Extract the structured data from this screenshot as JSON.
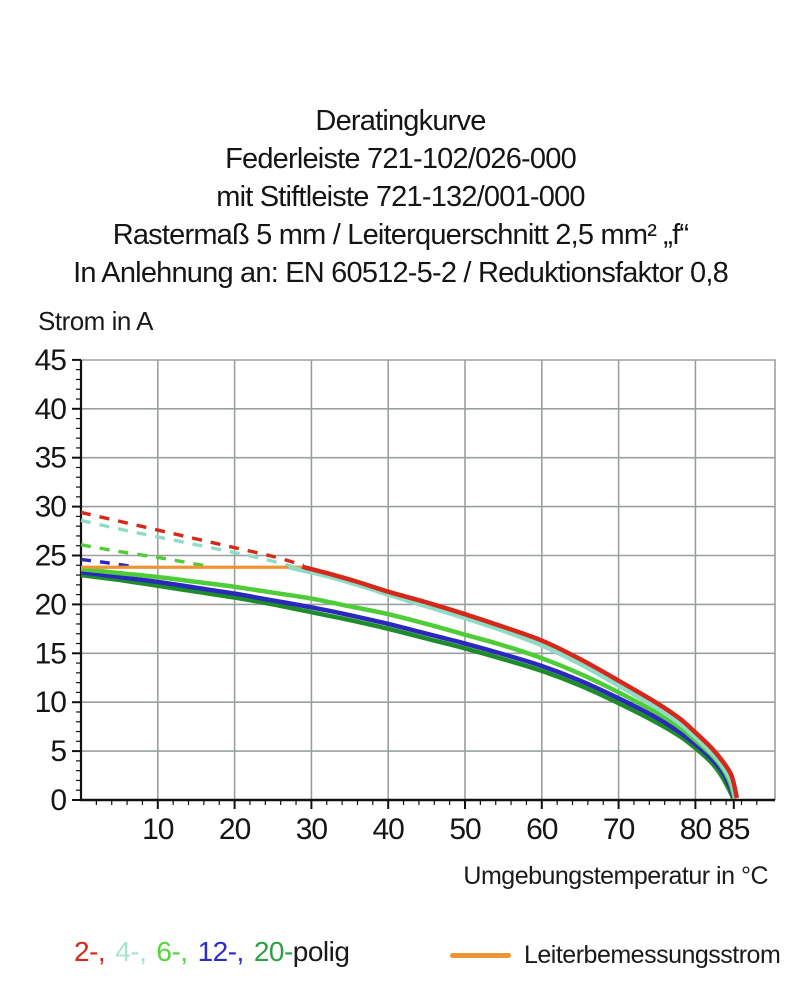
{
  "title": {
    "lines": [
      "Deratingkurve",
      "Federleiste 721-102/026-000",
      "mit Stiftleiste 721-132/001-000",
      "Rastermaß 5 mm / Leiterquerschnitt 2,5 mm² „f“",
      "In Anlehnung an: EN 60512-5-2 / Reduktionsfaktor 0,8"
    ]
  },
  "chart_data": {
    "type": "line",
    "title": "Deratingkurve Federleiste 721-102/026-000 mit Stiftleiste 721-132/001-000",
    "xlabel": "Umgebungstemperatur in °C",
    "ylabel": "Strom in A",
    "xlim": [
      0,
      90.3
    ],
    "ylim": [
      0,
      45
    ],
    "grid": true,
    "x_major_ticks": [
      10,
      20,
      30,
      40,
      50,
      60,
      70,
      80,
      85
    ],
    "x_grid_ticks": [
      10,
      20,
      30,
      40,
      50,
      60,
      70,
      80
    ],
    "y_major_ticks": [
      0,
      5,
      10,
      15,
      20,
      25,
      30,
      35,
      40,
      45
    ],
    "y_grid_ticks": [
      5,
      10,
      15,
      20,
      25,
      30,
      35,
      40
    ],
    "x_minor_step": 2,
    "y_minor_step": 1,
    "axis_color": "#111111",
    "grid_color": "#9aa0a0",
    "series": [
      {
        "name": "2-polig oberhalb Leiterbemessungsstrom",
        "pole_count": 2,
        "style": "dashed",
        "color": "#d5281b",
        "width": 3.4,
        "points": [
          [
            0,
            29.4
          ],
          [
            5,
            28.5
          ],
          [
            10,
            27.6
          ],
          [
            15,
            26.7
          ],
          [
            20,
            25.8
          ],
          [
            25,
            24.9
          ],
          [
            29,
            24.0
          ]
        ]
      },
      {
        "name": "4-polig oberhalb Leiterbemessungsstrom",
        "pole_count": 4,
        "style": "dashed",
        "color": "#8edcc6",
        "width": 3.4,
        "points": [
          [
            0,
            28.6
          ],
          [
            5,
            27.7
          ],
          [
            10,
            26.9
          ],
          [
            15,
            26.1
          ],
          [
            20,
            25.3
          ],
          [
            24,
            24.6
          ],
          [
            27.5,
            23.9
          ]
        ]
      },
      {
        "name": "6-polig oberhalb Leiterbemessungsstrom",
        "pole_count": 6,
        "style": "dashed",
        "color": "#4ecd38",
        "width": 3.4,
        "points": [
          [
            0,
            26.1
          ],
          [
            5,
            25.4
          ],
          [
            10,
            24.8
          ],
          [
            13,
            24.4
          ],
          [
            16.5,
            23.9
          ]
        ]
      },
      {
        "name": "12-polig oberhalb Leiterbemessungsstrom",
        "pole_count": 12,
        "style": "dashed",
        "color": "#2a28bd",
        "width": 3.4,
        "points": [
          [
            0,
            24.6
          ],
          [
            3,
            24.3
          ],
          [
            6.5,
            23.9
          ]
        ]
      },
      {
        "name": "20-polig",
        "pole_count": 20,
        "style": "solid",
        "color": "#1f8c2a",
        "width": 4.5,
        "points": [
          [
            0,
            23.0
          ],
          [
            5,
            22.5
          ],
          [
            10,
            21.9
          ],
          [
            15,
            21.3
          ],
          [
            20,
            20.7
          ],
          [
            25,
            20.0
          ],
          [
            30,
            19.2
          ],
          [
            35,
            18.4
          ],
          [
            40,
            17.5
          ],
          [
            45,
            16.5
          ],
          [
            50,
            15.5
          ],
          [
            55,
            14.4
          ],
          [
            60,
            13.2
          ],
          [
            65,
            11.7
          ],
          [
            70,
            9.9
          ],
          [
            75,
            7.9
          ],
          [
            78,
            6.5
          ],
          [
            80,
            5.3
          ],
          [
            82,
            3.9
          ],
          [
            83.3,
            2.6
          ],
          [
            84.3,
            1.2
          ],
          [
            84.9,
            0.2
          ]
        ]
      },
      {
        "name": "12-polig",
        "pole_count": 12,
        "style": "solid",
        "color": "#2a28bd",
        "width": 4.5,
        "points": [
          [
            0,
            23.3
          ],
          [
            5,
            22.8
          ],
          [
            10,
            22.3
          ],
          [
            15,
            21.7
          ],
          [
            20,
            21.1
          ],
          [
            25,
            20.4
          ],
          [
            30,
            19.7
          ],
          [
            35,
            18.9
          ],
          [
            40,
            18.0
          ],
          [
            45,
            17.0
          ],
          [
            50,
            16.0
          ],
          [
            55,
            14.9
          ],
          [
            60,
            13.7
          ],
          [
            65,
            12.2
          ],
          [
            70,
            10.4
          ],
          [
            75,
            8.4
          ],
          [
            78,
            6.9
          ],
          [
            80,
            5.7
          ],
          [
            82,
            4.3
          ],
          [
            83.5,
            2.9
          ],
          [
            84.4,
            1.5
          ],
          [
            85.0,
            0.2
          ]
        ]
      },
      {
        "name": "6-polig",
        "pole_count": 6,
        "style": "solid",
        "color": "#4ecd38",
        "width": 4.5,
        "points": [
          [
            0,
            23.6
          ],
          [
            5,
            23.2
          ],
          [
            10,
            22.8
          ],
          [
            15,
            22.3
          ],
          [
            20,
            21.8
          ],
          [
            25,
            21.2
          ],
          [
            30,
            20.6
          ],
          [
            35,
            19.8
          ],
          [
            40,
            19.0
          ],
          [
            45,
            18.0
          ],
          [
            50,
            16.9
          ],
          [
            55,
            15.8
          ],
          [
            60,
            14.5
          ],
          [
            65,
            12.9
          ],
          [
            70,
            11.0
          ],
          [
            75,
            8.9
          ],
          [
            78,
            7.4
          ],
          [
            80,
            6.1
          ],
          [
            82,
            4.7
          ],
          [
            83.5,
            3.3
          ],
          [
            84.5,
            1.8
          ],
          [
            85.1,
            0.2
          ]
        ]
      },
      {
        "name": "Leiterbemessungsstrom",
        "style": "solid",
        "color": "#ef9434",
        "width": 3.2,
        "points": [
          [
            0,
            23.8
          ],
          [
            28.8,
            23.8
          ]
        ]
      },
      {
        "name": "4-polig",
        "pole_count": 4,
        "style": "solid",
        "color": "#8edcc6",
        "width": 4.5,
        "points": [
          [
            27,
            23.8
          ],
          [
            32,
            22.9
          ],
          [
            36,
            22.0
          ],
          [
            40,
            21.0
          ],
          [
            45,
            19.8
          ],
          [
            50,
            18.6
          ],
          [
            55,
            17.3
          ],
          [
            60,
            15.8
          ],
          [
            65,
            13.9
          ],
          [
            70,
            11.7
          ],
          [
            75,
            9.4
          ],
          [
            78,
            7.8
          ],
          [
            80,
            6.4
          ],
          [
            82,
            4.9
          ],
          [
            83.5,
            3.5
          ],
          [
            84.6,
            2.0
          ],
          [
            85.2,
            0.2
          ]
        ]
      },
      {
        "name": "2-polig",
        "pole_count": 2,
        "style": "solid",
        "color": "#d5281b",
        "width": 4.5,
        "points": [
          [
            28.8,
            23.85
          ],
          [
            32,
            23.2
          ],
          [
            36,
            22.3
          ],
          [
            40,
            21.3
          ],
          [
            45,
            20.2
          ],
          [
            50,
            19.0
          ],
          [
            55,
            17.7
          ],
          [
            60,
            16.3
          ],
          [
            65,
            14.4
          ],
          [
            70,
            12.2
          ],
          [
            75,
            9.9
          ],
          [
            78,
            8.3
          ],
          [
            80,
            6.9
          ],
          [
            82,
            5.4
          ],
          [
            83.5,
            4.0
          ],
          [
            84.7,
            2.5
          ],
          [
            85.4,
            0.2
          ]
        ]
      }
    ]
  },
  "legend": {
    "pole_items": [
      {
        "label": "2-,",
        "color": "#d5281b"
      },
      {
        "label": "4-,",
        "color": "#a5e4d3"
      },
      {
        "label": "6-,",
        "color": "#55d53c"
      },
      {
        "label": "12-,",
        "color": "#2d2ccc"
      },
      {
        "label": "20-",
        "color": "#2da045"
      }
    ],
    "pole_suffix": "polig",
    "rated_label": "Leiterbemessungsstrom",
    "rated_color": "#ef9434"
  }
}
